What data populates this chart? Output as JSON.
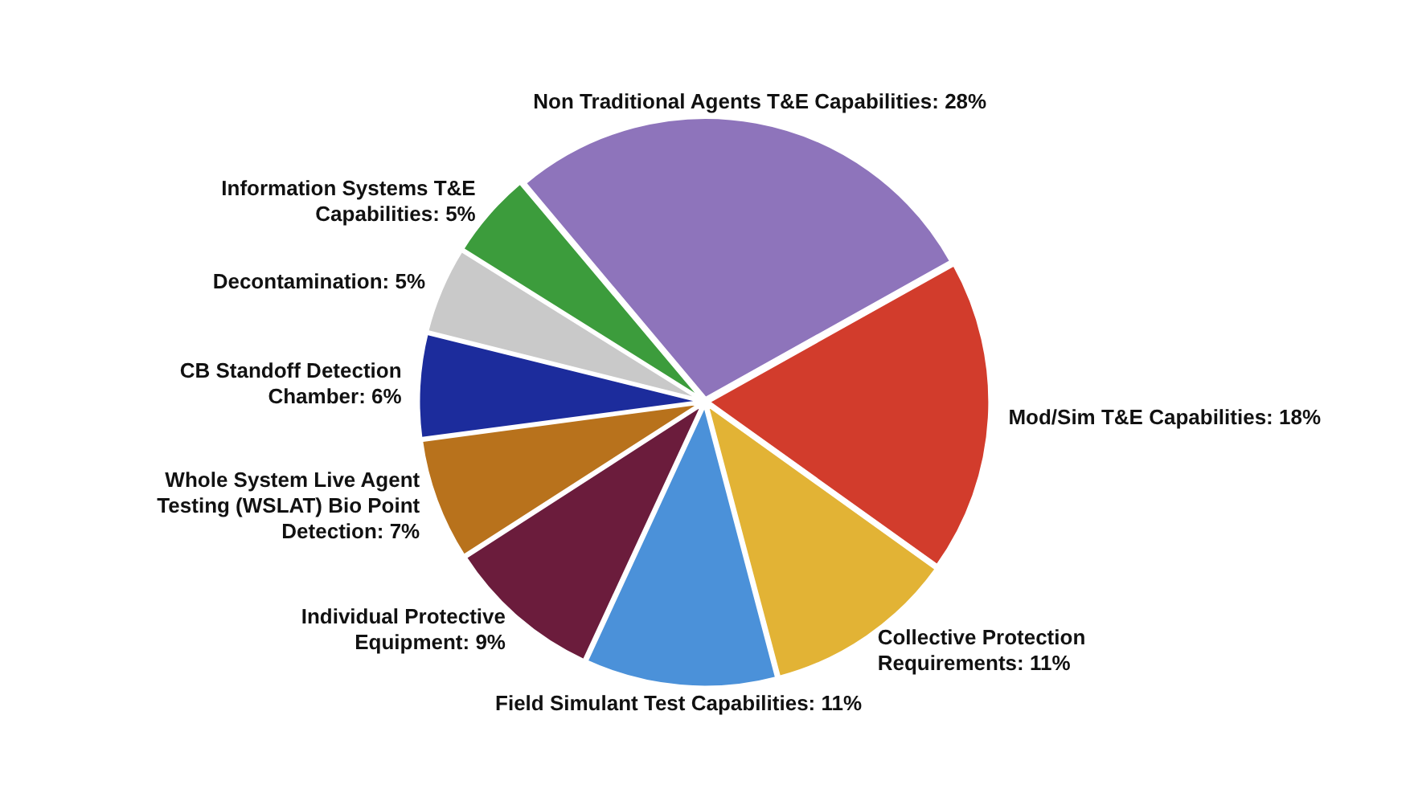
{
  "chart_data": {
    "type": "pie",
    "categories": [
      "Non Traditional Agents T&E Capabilities",
      "Mod/Sim T&E Capabilities",
      "Collective Protection Requirements",
      "Field Simulant Test Capabilities",
      "Individual Protective Equipment",
      "Whole System Live Agent Testing (WSLAT) Bio Point Detection",
      "CB Standoff Detection Chamber",
      "Decontamination",
      "Information Systems T&E Capabilities"
    ],
    "values": [
      28,
      18,
      11,
      11,
      9,
      7,
      6,
      5,
      5
    ],
    "value_labels": [
      "28%",
      "18%",
      "11%",
      "11%",
      "9%",
      "7%",
      "6%",
      "5%",
      "5%"
    ],
    "colors": [
      "#8e74bb",
      "#d23c2c",
      "#e2b335",
      "#4b91d9",
      "#6b1c3c",
      "#b8721c",
      "#1c2c9c",
      "#c9c9c9",
      "#3c9c3c"
    ],
    "legend": false
  }
}
